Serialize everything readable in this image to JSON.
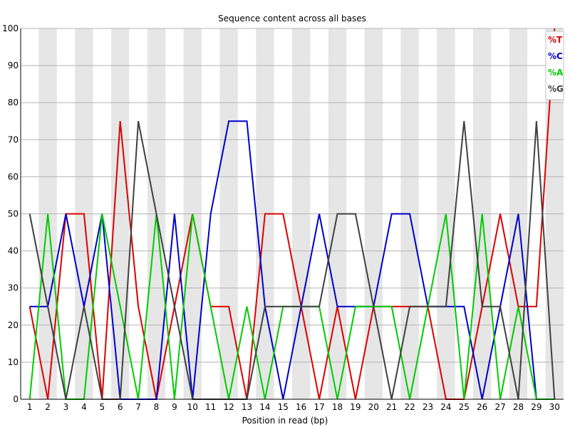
{
  "chart_data": {
    "type": "line",
    "title": "Sequence content across all bases",
    "xlabel": "Position in read (bp)",
    "ylabel": "",
    "ylim": [
      0,
      100
    ],
    "yticks": [
      "0",
      "10",
      "20",
      "30",
      "40",
      "50",
      "60",
      "70",
      "80",
      "90",
      "100"
    ],
    "x": [
      "1",
      "2",
      "3",
      "4",
      "5",
      "6",
      "7",
      "8",
      "9",
      "10",
      "11",
      "12",
      "13",
      "14",
      "15",
      "16",
      "17",
      "18",
      "19",
      "20",
      "21",
      "22",
      "23",
      "24",
      "25",
      "26",
      "27",
      "28",
      "29",
      "30"
    ],
    "grid": true,
    "legend_position": "top-right",
    "series": [
      {
        "name": "%T",
        "color": "#dd0000",
        "values": [
          25,
          0,
          50,
          50,
          0,
          75,
          25,
          0,
          25,
          50,
          25,
          25,
          0,
          50,
          50,
          25,
          0,
          25,
          0,
          25,
          25,
          25,
          25,
          0,
          0,
          25,
          50,
          25,
          25,
          100
        ]
      },
      {
        "name": "%C",
        "color": "#0000cc",
        "values": [
          25,
          25,
          50,
          25,
          50,
          0,
          0,
          0,
          50,
          0,
          50,
          75,
          75,
          25,
          0,
          25,
          50,
          25,
          25,
          25,
          50,
          50,
          25,
          25,
          25,
          0,
          25,
          50,
          0,
          0
        ]
      },
      {
        "name": "%A",
        "color": "#00cc00",
        "values": [
          0,
          50,
          0,
          0,
          50,
          25,
          0,
          50,
          0,
          50,
          25,
          0,
          25,
          0,
          25,
          25,
          25,
          0,
          25,
          25,
          25,
          0,
          25,
          50,
          0,
          50,
          0,
          25,
          0,
          0
        ]
      },
      {
        "name": "%G",
        "color": "#404040",
        "values": [
          50,
          25,
          0,
          25,
          0,
          0,
          75,
          50,
          25,
          0,
          0,
          0,
          0,
          25,
          25,
          25,
          25,
          50,
          50,
          25,
          0,
          25,
          25,
          25,
          75,
          25,
          25,
          0,
          75,
          0
        ]
      }
    ]
  }
}
